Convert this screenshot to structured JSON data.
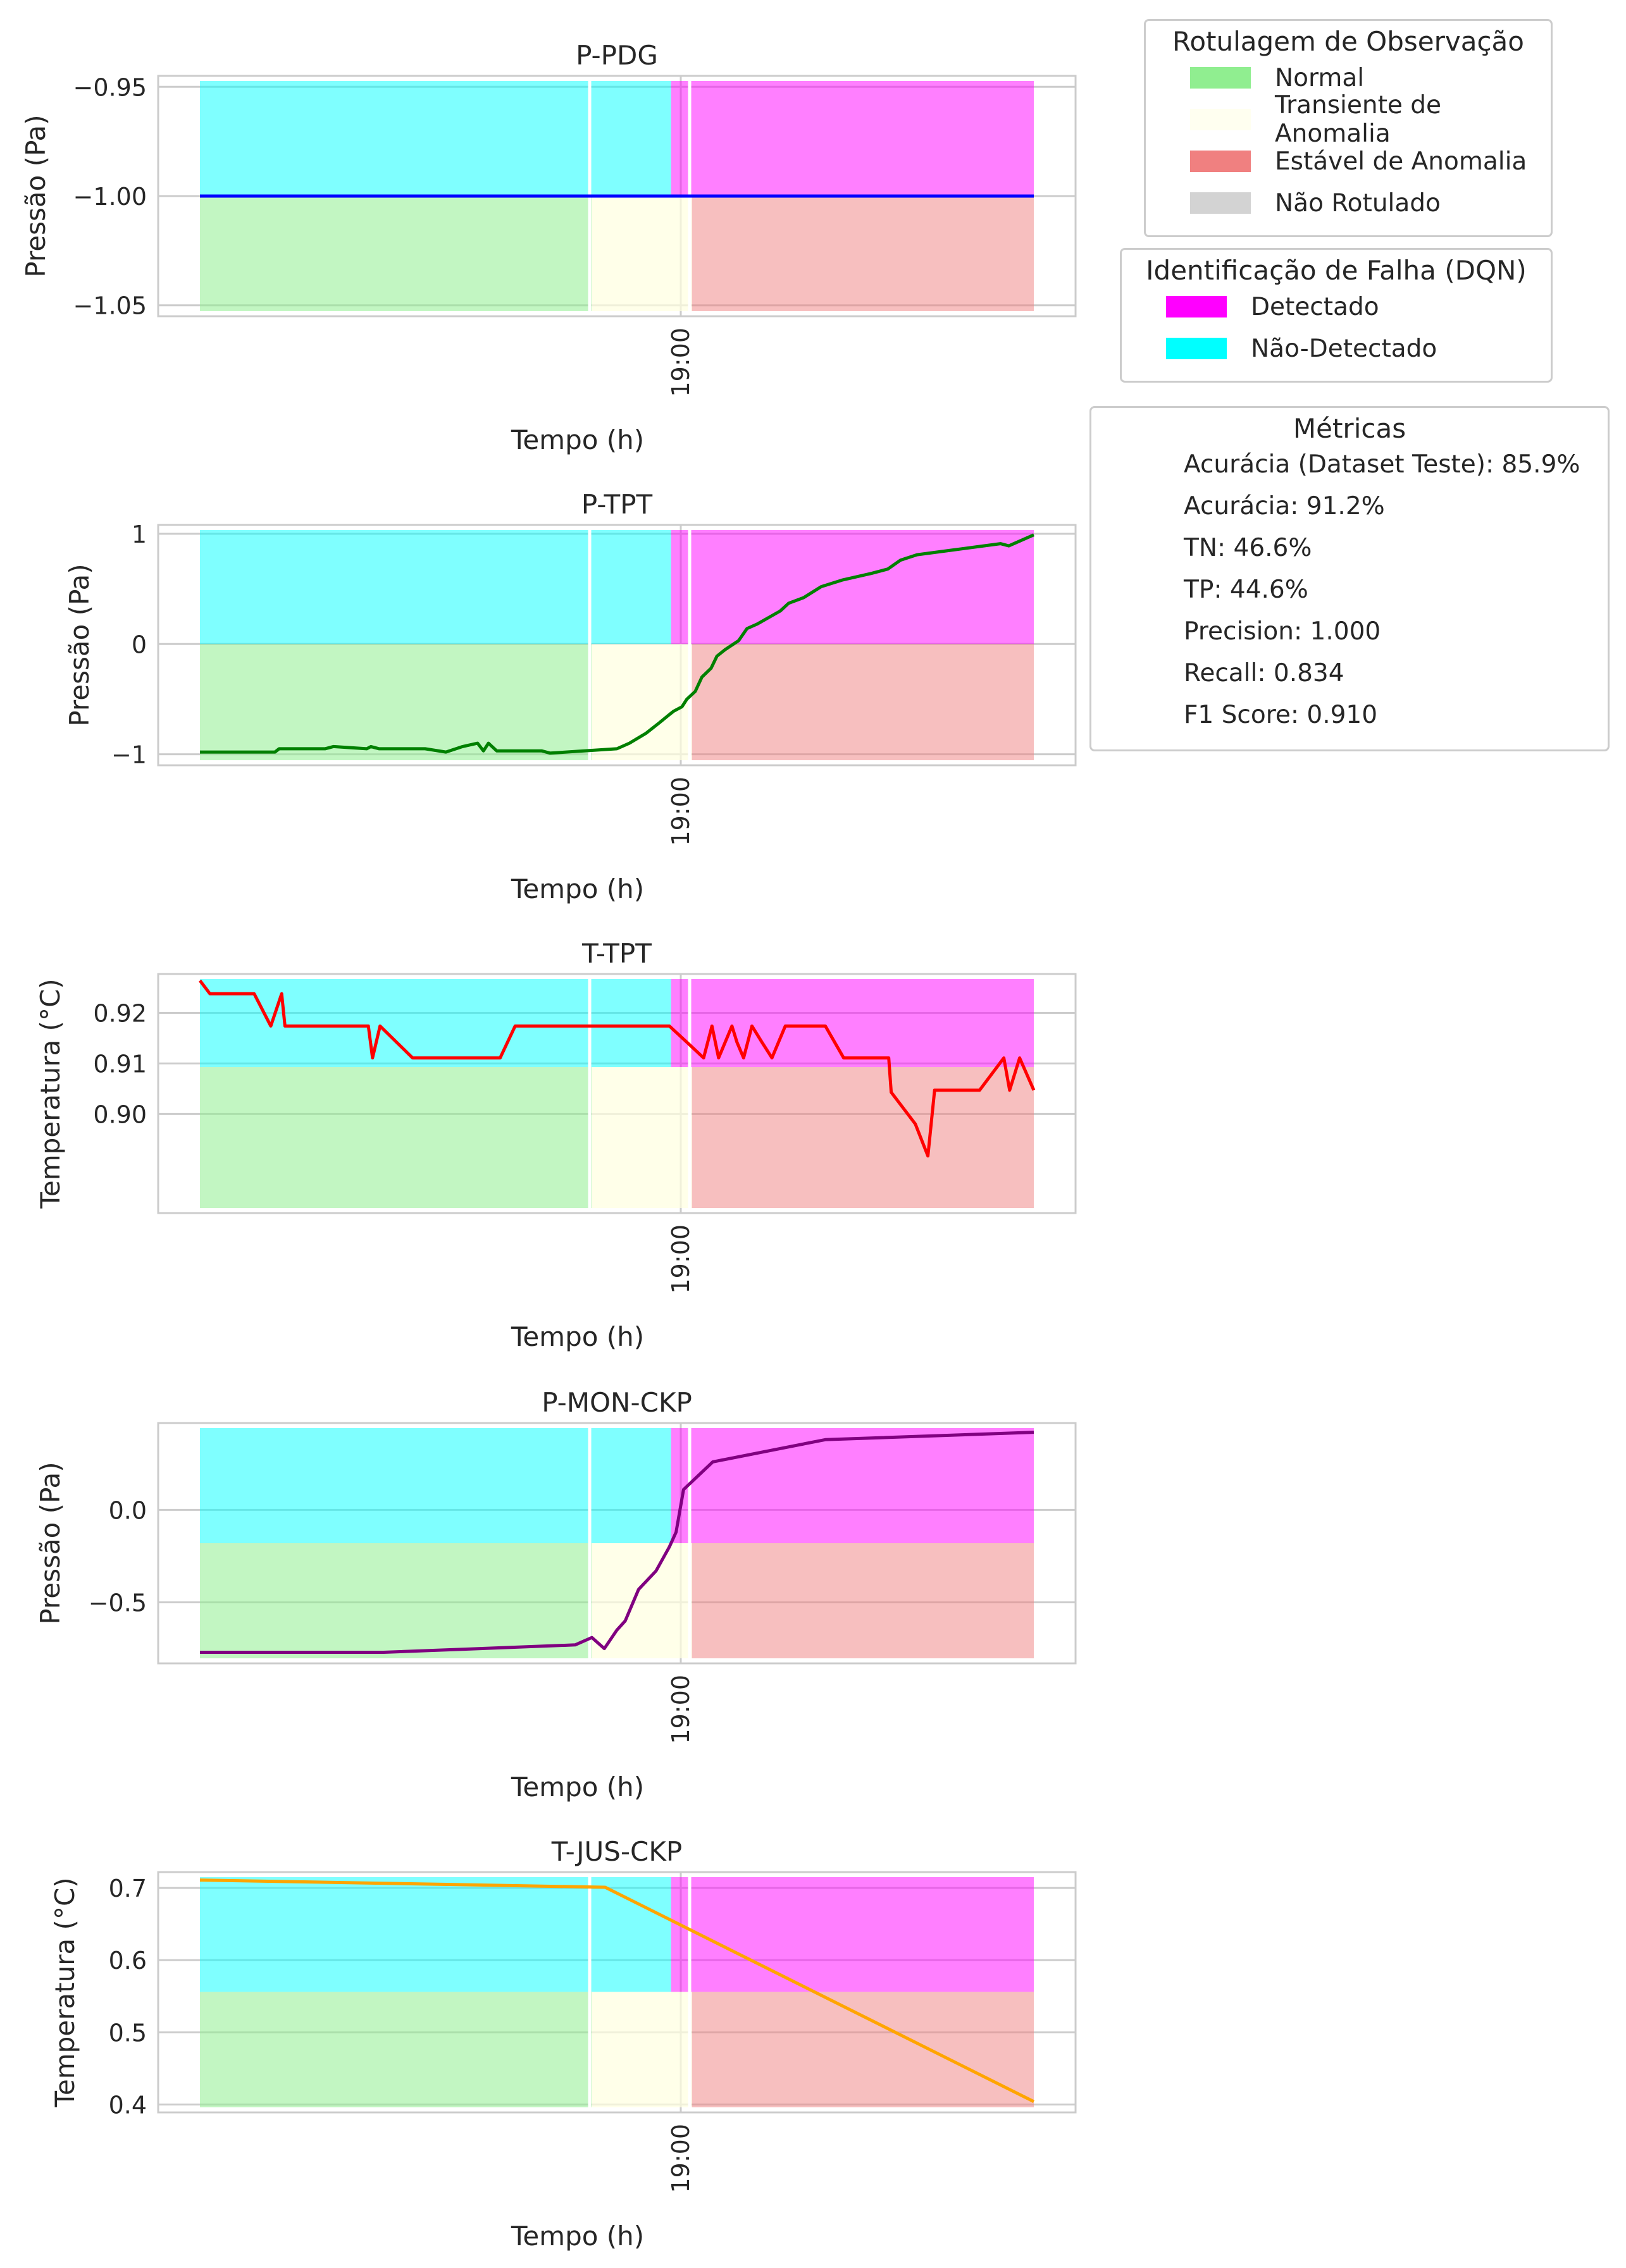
{
  "chart_data": {
    "type": "line",
    "x_tick_label": "19:00",
    "xlabel": "Tempo (h)",
    "x_range": [
      0,
      100
    ],
    "regions": {
      "observation": [
        {
          "label": "normal",
          "x": [
            0,
            47.0
          ]
        },
        {
          "label": "transient",
          "x": [
            47.0,
            59.0
          ]
        },
        {
          "label": "steady",
          "x": [
            59.0,
            100
          ]
        }
      ],
      "detection": [
        {
          "label": "not_detected",
          "x": [
            0,
            56.5
          ]
        },
        {
          "label": "detected",
          "x": [
            56.5,
            100
          ]
        }
      ]
    },
    "subplots": [
      {
        "title": "P-PDG",
        "ylabel": "Pressão (Pa)",
        "ylim": [
          -1.055,
          -0.945
        ],
        "split_y": -1.0,
        "yticks": [
          -0.95,
          -1.0,
          -1.05
        ],
        "ytick_labels": [
          "−0.95",
          "−1.00",
          "−1.05"
        ],
        "color": "#0000ff",
        "series": [
          [
            0,
            -1.0
          ],
          [
            100,
            -1.0
          ]
        ]
      },
      {
        "title": "P-TPT",
        "ylabel": "Pressão (Pa)",
        "ylim": [
          -1.1,
          1.08
        ],
        "split_y": 0.0,
        "yticks": [
          1,
          0,
          -1
        ],
        "ytick_labels": [
          "1",
          "0",
          "−1"
        ],
        "color": "#008000",
        "series": [
          [
            0,
            -0.98
          ],
          [
            9,
            -0.98
          ],
          [
            9.5,
            -0.95
          ],
          [
            15,
            -0.95
          ],
          [
            16,
            -0.93
          ],
          [
            20,
            -0.95
          ],
          [
            20.5,
            -0.93
          ],
          [
            21.5,
            -0.95
          ],
          [
            27,
            -0.95
          ],
          [
            29.5,
            -0.98
          ],
          [
            31.5,
            -0.93
          ],
          [
            33.3,
            -0.9
          ],
          [
            34.0,
            -0.97
          ],
          [
            34.6,
            -0.9
          ],
          [
            35.6,
            -0.97
          ],
          [
            41,
            -0.97
          ],
          [
            42,
            -0.99
          ],
          [
            50,
            -0.95
          ],
          [
            51.5,
            -0.9
          ],
          [
            53.5,
            -0.81
          ],
          [
            55,
            -0.72
          ],
          [
            56.3,
            -0.64
          ],
          [
            56.8,
            -0.61
          ],
          [
            57.8,
            -0.57
          ],
          [
            58.4,
            -0.5
          ],
          [
            59.4,
            -0.43
          ],
          [
            60.2,
            -0.3
          ],
          [
            61.3,
            -0.22
          ],
          [
            62,
            -0.11
          ],
          [
            63,
            -0.05
          ],
          [
            64.6,
            0.03
          ],
          [
            65.6,
            0.14
          ],
          [
            66.8,
            0.18
          ],
          [
            69.6,
            0.3
          ],
          [
            70.6,
            0.37
          ],
          [
            72.4,
            0.42
          ],
          [
            74.5,
            0.52
          ],
          [
            77,
            0.58
          ],
          [
            80.5,
            0.64
          ],
          [
            82.5,
            0.68
          ],
          [
            84,
            0.76
          ],
          [
            86,
            0.81
          ],
          [
            90,
            0.85
          ],
          [
            93,
            0.88
          ],
          [
            96,
            0.91
          ],
          [
            97,
            0.89
          ],
          [
            100,
            0.99
          ]
        ]
      },
      {
        "title": "T-TPT",
        "ylabel": "Temperatura (°C)",
        "ylim": [
          0.8804,
          0.9277
        ],
        "split_y": 0.9093,
        "yticks": [
          0.92,
          0.91,
          0.9
        ],
        "ytick_labels": [
          "0.92",
          "0.91",
          "0.90"
        ],
        "color": "#ff0000",
        "series": [
          [
            0,
            0.9264
          ],
          [
            1.2,
            0.9238
          ],
          [
            6.5,
            0.9238
          ],
          [
            8.5,
            0.9174
          ],
          [
            9.8,
            0.9238
          ],
          [
            10.2,
            0.9174
          ],
          [
            20.2,
            0.9174
          ],
          [
            20.7,
            0.9111
          ],
          [
            21.6,
            0.9174
          ],
          [
            25.5,
            0.9111
          ],
          [
            36,
            0.9111
          ],
          [
            37.8,
            0.9174
          ],
          [
            56.3,
            0.9174
          ],
          [
            58.4,
            0.9142
          ],
          [
            60.4,
            0.9111
          ],
          [
            61.4,
            0.9174
          ],
          [
            62.2,
            0.9111
          ],
          [
            63.8,
            0.9174
          ],
          [
            64.4,
            0.9142
          ],
          [
            65.2,
            0.9111
          ],
          [
            66.2,
            0.9174
          ],
          [
            67.4,
            0.9142
          ],
          [
            68.6,
            0.9111
          ],
          [
            70.2,
            0.9174
          ],
          [
            75,
            0.9174
          ],
          [
            77.2,
            0.9111
          ],
          [
            82.6,
            0.9111
          ],
          [
            82.9,
            0.9043
          ],
          [
            85.8,
            0.898
          ],
          [
            87.3,
            0.8917
          ],
          [
            88.1,
            0.9047
          ],
          [
            93.5,
            0.9047
          ],
          [
            96.4,
            0.9111
          ],
          [
            97.1,
            0.9047
          ],
          [
            98.3,
            0.9111
          ],
          [
            100,
            0.9047
          ]
        ]
      },
      {
        "title": "P-MON-CKP",
        "ylabel": "Pressão (Pa)",
        "ylim": [
          -0.83,
          0.47
        ],
        "split_y": -0.18,
        "yticks": [
          0.0,
          -0.5
        ],
        "ytick_labels": [
          "0.0",
          "−0.5"
        ],
        "color": "#800080",
        "series": [
          [
            0,
            -0.77
          ],
          [
            22,
            -0.77
          ],
          [
            45,
            -0.73
          ],
          [
            47,
            -0.69
          ],
          [
            48.5,
            -0.75
          ],
          [
            50,
            -0.65
          ],
          [
            51,
            -0.6
          ],
          [
            52.6,
            -0.43
          ],
          [
            54.7,
            -0.33
          ],
          [
            56.3,
            -0.2
          ],
          [
            57.1,
            -0.12
          ],
          [
            58,
            0.11
          ],
          [
            61.5,
            0.26
          ],
          [
            75,
            0.38
          ],
          [
            100,
            0.42
          ]
        ]
      },
      {
        "title": "T-JUS-CKP",
        "ylabel": "Temperatura (°C)",
        "ylim": [
          0.389,
          0.722
        ],
        "split_y": 0.556,
        "yticks": [
          0.7,
          0.6,
          0.5,
          0.4
        ],
        "ytick_labels": [
          "0.7",
          "0.6",
          "0.5",
          "0.4"
        ],
        "color": "#ffa500",
        "series": [
          [
            0,
            0.711
          ],
          [
            48.6,
            0.701
          ],
          [
            100,
            0.404
          ]
        ]
      }
    ],
    "legend_observation": {
      "title": "Rotulagem de Observação",
      "items": [
        {
          "label": "Normal",
          "color": "#90ee90"
        },
        {
          "label": "Transiente de Anomalia",
          "color": "#fffff0"
        },
        {
          "label": "Estável de Anomalia",
          "color": "#f08080"
        },
        {
          "label": "Não Rotulado",
          "color": "#d3d3d3"
        }
      ]
    },
    "legend_detection": {
      "title": "Identificação de Falha (DQN)",
      "items": [
        {
          "label": "Detectado",
          "color": "#ff00ff"
        },
        {
          "label": "Não-Detectado",
          "color": "#00ffff"
        }
      ]
    },
    "metrics": {
      "title": "Métricas",
      "items": [
        "Acurácia (Dataset Teste): 85.9%",
        "Acurácia: 91.2%",
        "TN: 46.6%",
        "TP: 44.6%",
        "Precision: 1.000",
        "Recall: 0.834",
        "F1 Score: 0.910"
      ]
    }
  }
}
